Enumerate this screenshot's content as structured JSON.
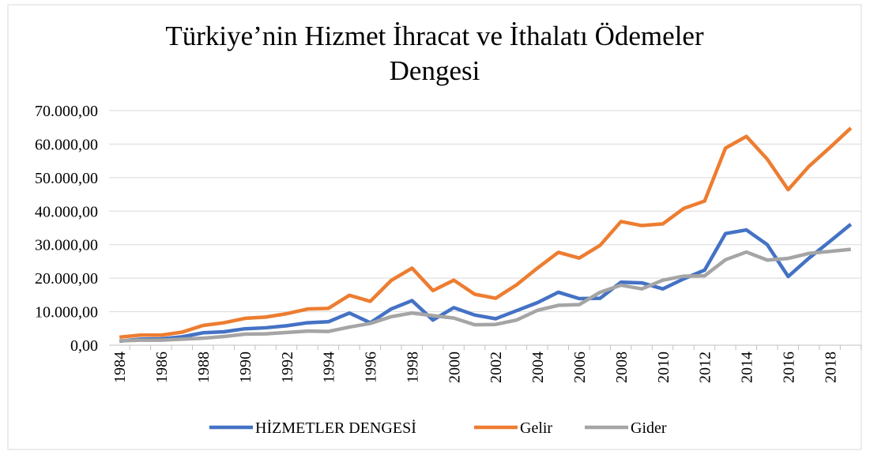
{
  "chart_data": {
    "type": "line",
    "title": "Türkiye’nin Hizmet İhracat ve İthalatı Ödemeler Dengesi",
    "x": [
      1984,
      1985,
      1986,
      1987,
      1988,
      1989,
      1990,
      1991,
      1992,
      1993,
      1994,
      1995,
      1996,
      1997,
      1998,
      1999,
      2000,
      2001,
      2002,
      2003,
      2004,
      2005,
      2006,
      2007,
      2008,
      2009,
      2010,
      2011,
      2012,
      2013,
      2014,
      2015,
      2016,
      2017,
      2018,
      2019
    ],
    "xlim": [
      1983.5,
      2019.5
    ],
    "xticks": [
      1984,
      1986,
      1988,
      1990,
      1992,
      1994,
      1996,
      1998,
      2000,
      2002,
      2004,
      2006,
      2008,
      2010,
      2012,
      2014,
      2016,
      2018
    ],
    "ylim": [
      0,
      70000
    ],
    "yticks": [
      {
        "value": 0,
        "label": "0,00"
      },
      {
        "value": 10000,
        "label": "10.000,00"
      },
      {
        "value": 20000,
        "label": "20.000,00"
      },
      {
        "value": 30000,
        "label": "30.000,00"
      },
      {
        "value": 40000,
        "label": "40.000,00"
      },
      {
        "value": 50000,
        "label": "50.000,00"
      },
      {
        "value": 60000,
        "label": "60.000,00"
      },
      {
        "value": 70000,
        "label": "70.000,00"
      }
    ],
    "grid": true,
    "legend": "bottom",
    "series": [
      {
        "name": "HİZMETLER DENGESİ",
        "color": "#4472c4",
        "values": [
          1200,
          1800,
          1900,
          2500,
          3700,
          4000,
          4900,
          5200,
          5800,
          6700,
          7000,
          9600,
          6700,
          10800,
          13300,
          7500,
          11200,
          9000,
          7900,
          10300,
          12700,
          15800,
          13900,
          14000,
          18800,
          18600,
          16800,
          19800,
          22400,
          33300,
          34400,
          30000,
          20500,
          26000,
          31000,
          36100
        ]
      },
      {
        "name": "Gelir",
        "color": "#ed7d31",
        "values": [
          2400,
          3000,
          3000,
          3900,
          5900,
          6700,
          8000,
          8400,
          9400,
          10800,
          11000,
          14900,
          13100,
          19300,
          23000,
          16300,
          19400,
          15200,
          14000,
          18000,
          23000,
          27700,
          26000,
          29800,
          36900,
          35700,
          36200,
          40800,
          43000,
          58800,
          62300,
          55500,
          46400,
          53400,
          59000,
          64800
        ]
      },
      {
        "name": "Gider",
        "color": "#a5a5a5",
        "values": [
          1300,
          1500,
          1500,
          1800,
          2100,
          2600,
          3300,
          3400,
          3800,
          4200,
          4100,
          5400,
          6500,
          8500,
          9600,
          8800,
          8100,
          6100,
          6200,
          7500,
          10400,
          11900,
          12100,
          15800,
          17900,
          16800,
          19400,
          20600,
          20700,
          25500,
          27800,
          25400,
          25900,
          27400,
          28000,
          28600
        ]
      }
    ]
  }
}
